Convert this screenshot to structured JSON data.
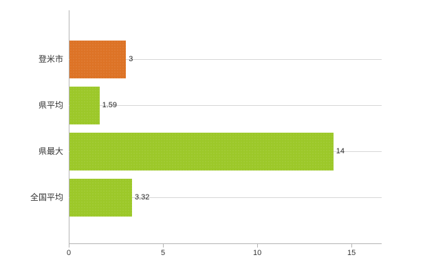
{
  "chart_data": {
    "type": "bar",
    "orientation": "horizontal",
    "title": "",
    "xlabel": "",
    "ylabel": "",
    "categories": [
      "登米市",
      "県平均",
      "県最大",
      "全国平均"
    ],
    "values": [
      3,
      1.59,
      14,
      3.32
    ],
    "value_labels": [
      "3",
      "1.59",
      "14",
      "3.32"
    ],
    "bar_colors": [
      "#dd7326",
      "#9cc829",
      "#9cc829",
      "#9cc829"
    ],
    "xlim": [
      0,
      16.6
    ],
    "xticks": [
      0,
      5,
      10,
      15
    ],
    "xtick_labels": [
      "0",
      "5",
      "10",
      "15"
    ],
    "legend": "none",
    "grid": "horizontal line at each category, behind bars"
  },
  "colors": {
    "background": "#ffffff",
    "axis": "#b3b3b3",
    "gridline": "#d6d6d6",
    "text": "#333333",
    "accent_orange": "#dd7326",
    "accent_green": "#9cc829"
  }
}
